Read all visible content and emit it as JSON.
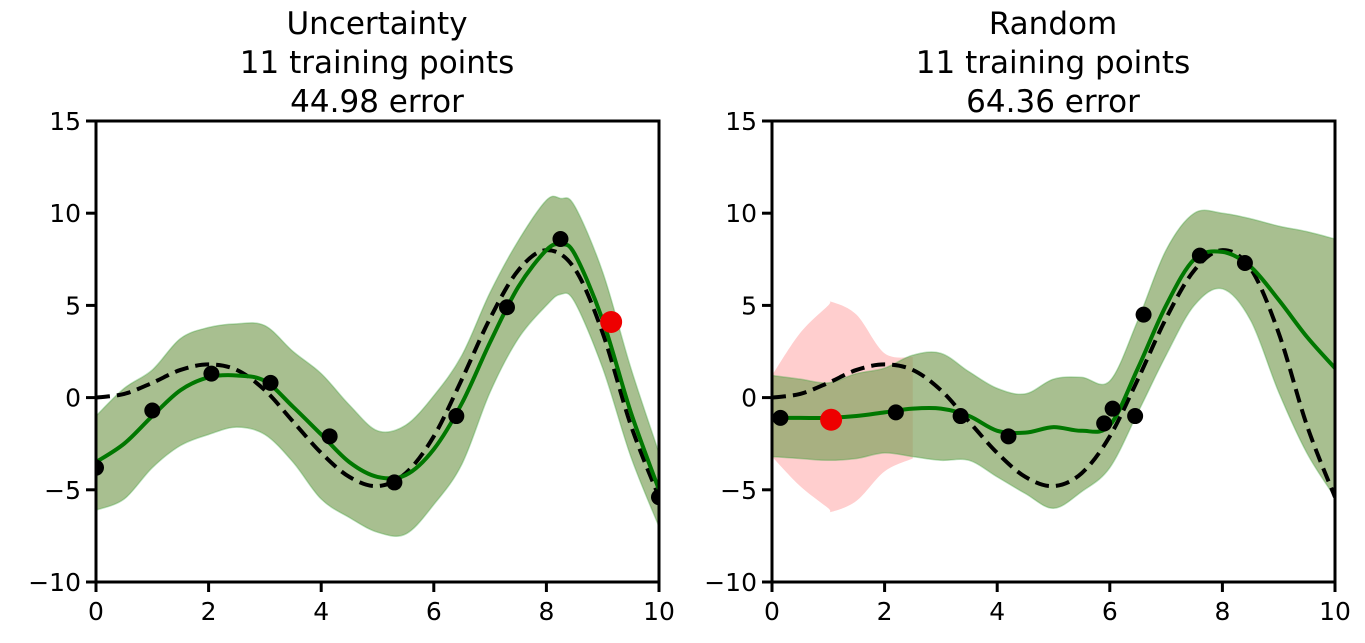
{
  "chart_data": [
    {
      "type": "line",
      "title": "Uncertainty\n11 training points\n44.98 error",
      "title_lines": [
        "Uncertainty",
        "11 training points",
        "44.98 error"
      ],
      "xlim": [
        0,
        10
      ],
      "ylim": [
        -10,
        15
      ],
      "xticks": [
        0,
        2,
        4,
        6,
        8,
        10
      ],
      "xtick_labels": [
        "0",
        "2",
        "4",
        "6",
        "8",
        "10"
      ],
      "yticks": [
        -10,
        -5,
        0,
        5,
        10,
        15
      ],
      "ytick_labels": [
        "−10",
        "−5",
        "0",
        "5",
        "10",
        "15"
      ],
      "colors": {
        "true_function": "#000000",
        "mean": "#007700",
        "band_green": "#3fa63f",
        "band_red": "#ff9d9d",
        "points": "#000000",
        "new_point": "#ee0000"
      },
      "true_function": {
        "x": [
          0,
          0.5,
          1,
          1.5,
          2,
          2.5,
          3,
          3.5,
          4,
          4.5,
          5,
          5.5,
          6,
          6.5,
          7,
          7.5,
          8,
          8.5,
          9,
          9.5,
          10
        ],
        "y": [
          0,
          0.2,
          0.8,
          1.5,
          1.8,
          1.5,
          0.4,
          -1.3,
          -3.0,
          -4.3,
          -4.8,
          -4.1,
          -2.1,
          1.0,
          4.3,
          6.9,
          8.0,
          7.0,
          3.5,
          -1.5,
          -5.4
        ]
      },
      "mean": {
        "x": [
          0,
          0.5,
          1,
          1.5,
          2,
          2.5,
          3,
          3.5,
          4,
          4.5,
          5,
          5.5,
          6,
          6.5,
          7,
          7.5,
          8,
          8.25,
          8.5,
          9,
          9.5,
          10
        ],
        "y": [
          -3.5,
          -2.5,
          -1.0,
          0.4,
          1.1,
          1.2,
          0.9,
          -0.5,
          -2.0,
          -3.5,
          -4.3,
          -4.2,
          -2.8,
          -0.3,
          3.0,
          6.0,
          8.0,
          8.3,
          7.8,
          4.2,
          -0.8,
          -5.0
        ]
      },
      "uncertainty_band": {
        "x": [
          0,
          0.5,
          1,
          1.5,
          2,
          2.5,
          3,
          3.5,
          4,
          4.5,
          5,
          5.5,
          6,
          6.5,
          7,
          7.5,
          8,
          8.25,
          8.5,
          9,
          9.5,
          10
        ],
        "lower": [
          -6.1,
          -5.5,
          -3.8,
          -2.6,
          -2.0,
          -1.6,
          -2.0,
          -3.5,
          -5.5,
          -6.5,
          -7.3,
          -7.4,
          -5.8,
          -3.6,
          0.3,
          3.2,
          5.0,
          5.6,
          5.2,
          1.6,
          -3.2,
          -7.0
        ],
        "upper": [
          -1.0,
          0.5,
          1.5,
          3.2,
          3.8,
          4.0,
          3.9,
          2.5,
          1.3,
          -0.4,
          -1.8,
          -1.5,
          0.1,
          2.3,
          5.7,
          8.5,
          10.7,
          10.8,
          10.4,
          6.8,
          1.6,
          -3.0
        ]
      },
      "training_points": {
        "x": [
          0,
          1.0,
          2.05,
          3.1,
          4.15,
          5.3,
          6.4,
          7.3,
          8.25,
          10
        ],
        "y": [
          -3.8,
          -0.7,
          1.3,
          0.8,
          -2.1,
          -4.6,
          -1.0,
          4.9,
          8.6,
          -5.4
        ]
      },
      "new_point": {
        "x": 9.15,
        "y": 4.1
      }
    },
    {
      "type": "line",
      "title": "Random\n11 training points\n64.36 error",
      "title_lines": [
        "Random",
        "11 training points",
        "64.36 error"
      ],
      "xlim": [
        0,
        10
      ],
      "ylim": [
        -10,
        15
      ],
      "xticks": [
        0,
        2,
        4,
        6,
        8,
        10
      ],
      "xtick_labels": [
        "0",
        "2",
        "4",
        "6",
        "8",
        "10"
      ],
      "yticks": [
        -10,
        -5,
        0,
        5,
        10,
        15
      ],
      "ytick_labels": [
        "−10",
        "−5",
        "0",
        "5",
        "10",
        "15"
      ],
      "colors": {
        "true_function": "#000000",
        "mean": "#007700",
        "band_green": "#3fa63f",
        "band_red": "#ff9d9d",
        "points": "#000000",
        "new_point": "#ee0000"
      },
      "true_function": {
        "x": [
          0,
          0.5,
          1,
          1.5,
          2,
          2.5,
          3,
          3.5,
          4,
          4.5,
          5,
          5.5,
          6,
          6.5,
          7,
          7.5,
          8,
          8.5,
          9,
          9.5,
          10
        ],
        "y": [
          0,
          0.2,
          0.8,
          1.5,
          1.8,
          1.5,
          0.4,
          -1.3,
          -3.0,
          -4.3,
          -4.8,
          -4.1,
          -2.1,
          1.0,
          4.3,
          6.9,
          8.0,
          7.0,
          3.5,
          -1.5,
          -5.4
        ]
      },
      "mean": {
        "x": [
          0,
          0.5,
          1,
          1.5,
          2,
          2.5,
          3,
          3.5,
          4,
          4.5,
          5,
          5.5,
          6,
          6.5,
          7,
          7.5,
          8,
          8.5,
          9,
          9.5,
          10
        ],
        "y": [
          -1.1,
          -1.1,
          -1.1,
          -1.0,
          -0.8,
          -0.6,
          -0.6,
          -1.0,
          -1.8,
          -1.9,
          -1.6,
          -1.8,
          -1.5,
          1.6,
          5.0,
          7.5,
          7.9,
          7.1,
          5.3,
          3.3,
          1.6
        ]
      },
      "uncertainty_band": {
        "x": [
          0,
          0.5,
          1,
          1.5,
          2,
          2.5,
          3,
          3.5,
          4,
          4.5,
          5,
          5.5,
          6,
          6.5,
          7,
          7.5,
          8,
          8.5,
          9,
          9.5,
          10
        ],
        "lower": [
          -3.2,
          -3.3,
          -3.4,
          -3.3,
          -3.0,
          -3.2,
          -3.4,
          -3.4,
          -4.3,
          -5.2,
          -6.0,
          -5.1,
          -3.8,
          -0.8,
          2.3,
          5.0,
          5.9,
          4.2,
          0.3,
          -3.0,
          -5.4
        ],
        "upper": [
          1.2,
          1.0,
          0.8,
          1.3,
          1.6,
          2.3,
          2.4,
          1.4,
          0.5,
          0.2,
          1.0,
          1.1,
          0.9,
          4.2,
          8.0,
          10.0,
          10.0,
          9.7,
          9.3,
          9.0,
          8.6
        ]
      },
      "red_band": {
        "x": [
          0,
          0.5,
          1,
          1.05,
          1.5,
          2,
          2.5
        ],
        "lower": [
          -3.2,
          -4.8,
          -6.0,
          -6.2,
          -5.6,
          -4.0,
          -3.3
        ],
        "upper": [
          1.2,
          3.5,
          5.0,
          5.2,
          4.5,
          2.4,
          2.2
        ]
      },
      "training_points": {
        "x": [
          0.15,
          2.2,
          3.35,
          4.2,
          5.9,
          6.05,
          6.45,
          6.6,
          7.6,
          8.4
        ],
        "y": [
          -1.1,
          -0.8,
          -1.0,
          -2.1,
          -1.4,
          -0.6,
          -1.0,
          4.5,
          7.7,
          7.3
        ]
      },
      "new_point": {
        "x": 1.05,
        "y": -1.2
      }
    }
  ]
}
